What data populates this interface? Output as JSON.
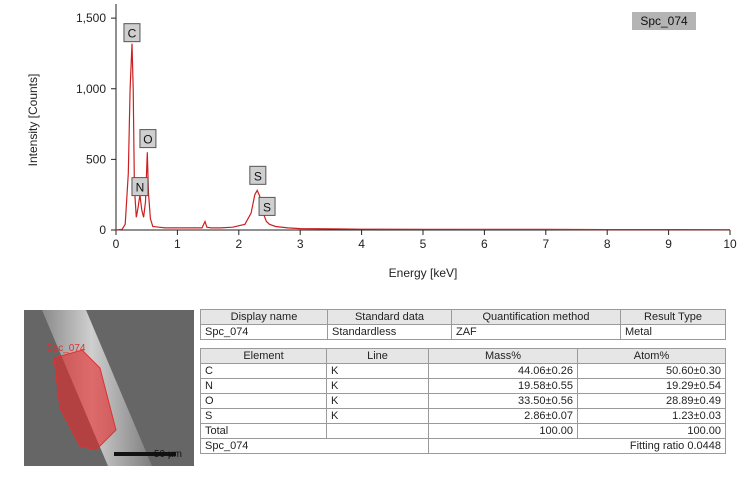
{
  "chart_data": {
    "type": "line",
    "title": "",
    "legend_label": "Spc_074",
    "xlabel": "Energy [keV]",
    "ylabel": "Intensity [Counts]",
    "xlim": [
      0,
      10
    ],
    "ylim": [
      0,
      1600
    ],
    "x_ticks": [
      0,
      1,
      2,
      3,
      4,
      5,
      6,
      7,
      8,
      9,
      10
    ],
    "x_tick_labels": [
      "0",
      "1",
      "2",
      "3",
      "4",
      "5",
      "6",
      "7",
      "8",
      "9",
      "10"
    ],
    "y_ticks": [
      0,
      500,
      1000,
      1500
    ],
    "y_tick_labels": [
      "0",
      "500",
      "1,000",
      "1,500"
    ],
    "line_color": "#cc2020",
    "series": [
      {
        "x": [
          0.0,
          0.1,
          0.15,
          0.2,
          0.23,
          0.26,
          0.28,
          0.3,
          0.33,
          0.36,
          0.39,
          0.42,
          0.45,
          0.48,
          0.51,
          0.53,
          0.56,
          0.6,
          0.7,
          0.8,
          1.0,
          1.2,
          1.4,
          1.45,
          1.48,
          1.55,
          1.7,
          1.9,
          2.1,
          2.2,
          2.26,
          2.3,
          2.34,
          2.38,
          2.45,
          2.5,
          2.6,
          2.8,
          3.0,
          3.5,
          4.0,
          5.0,
          6.0,
          7.0,
          8.0,
          9.0,
          10.0
        ],
        "y": [
          0,
          5,
          40,
          400,
          1000,
          1320,
          1000,
          300,
          90,
          160,
          250,
          140,
          90,
          200,
          550,
          260,
          80,
          25,
          20,
          15,
          15,
          15,
          15,
          60,
          20,
          15,
          15,
          20,
          40,
          120,
          250,
          280,
          240,
          140,
          60,
          40,
          25,
          15,
          10,
          8,
          6,
          5,
          4,
          4,
          3,
          3,
          2
        ]
      }
    ],
    "peak_labels": [
      {
        "label": "C",
        "x": 0.26,
        "y": 1390
      },
      {
        "label": "O",
        "x": 0.52,
        "y": 640
      },
      {
        "label": "N",
        "x": 0.39,
        "y": 300
      },
      {
        "label": "S",
        "x": 2.31,
        "y": 380
      },
      {
        "label": "S",
        "x": 2.46,
        "y": 160
      }
    ]
  },
  "image": {
    "label": "Spc_074",
    "scale_text": "50 µm"
  },
  "info_table": {
    "headers": [
      "Display name",
      "Standard data",
      "Quantification method",
      "Result Type"
    ],
    "row": [
      "Spc_074",
      "Standardless",
      "ZAF",
      "Metal"
    ]
  },
  "result_table": {
    "headers": [
      "Element",
      "Line",
      "Mass%",
      "Atom%"
    ],
    "rows": [
      [
        "C",
        "K",
        "44.06±0.26",
        "50.60±0.30"
      ],
      [
        "N",
        "K",
        "19.58±0.55",
        "19.29±0.54"
      ],
      [
        "O",
        "K",
        "33.50±0.56",
        "28.89±0.49"
      ],
      [
        "S",
        "K",
        "2.86±0.07",
        "1.23±0.03"
      ]
    ],
    "total": [
      "Total",
      "",
      "100.00",
      "100.00"
    ],
    "footer_left": "Spc_074",
    "footer_right": "Fitting ratio 0.0448"
  }
}
